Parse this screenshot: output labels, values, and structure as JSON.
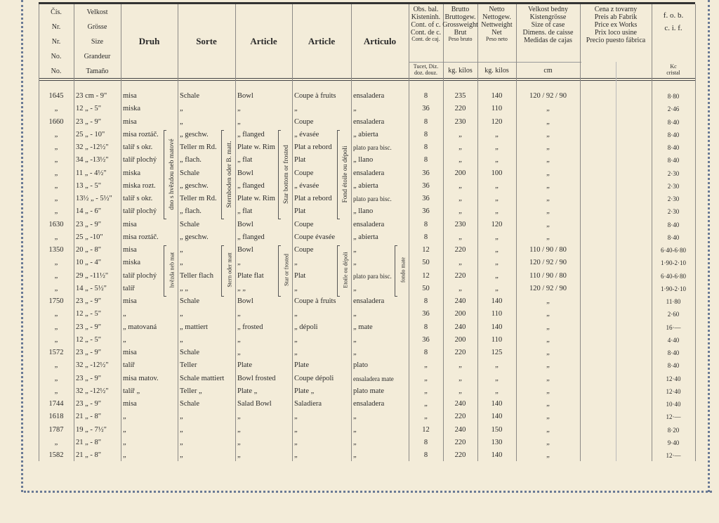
{
  "header": {
    "columns": [
      {
        "lines": [
          "Čís.",
          "Nr.",
          "Nr.",
          "No.",
          "No."
        ]
      },
      {
        "lines": [
          "Velkost",
          "Grösse",
          "Size",
          "Grandeur",
          "Tamaño"
        ]
      },
      {
        "lines": [
          "Druh"
        ]
      },
      {
        "lines": [
          "Sorte"
        ]
      },
      {
        "lines": [
          "Article"
        ]
      },
      {
        "lines": [
          "Article"
        ]
      },
      {
        "lines": [
          "Articulo"
        ]
      },
      {
        "lines": [
          "Obs. bal.",
          "Kisteninh.",
          "Cont. of c.",
          "Cont. de c.",
          "Cont. de caj."
        ],
        "units": [
          "Tucet, Diz.",
          "doz. douz."
        ]
      },
      {
        "lines": [
          "Brutto",
          "Bruttogew.",
          "Grossweight",
          "Brut",
          "Peso bruto"
        ],
        "units": [
          "kg. kilos"
        ]
      },
      {
        "lines": [
          "Netto",
          "Nettogew.",
          "Nettweight",
          "Net",
          "Peso neto"
        ],
        "units": [
          "kg. kilos"
        ]
      },
      {
        "lines": [
          "Velkost bedny",
          "Kistengrösse",
          "Size of case",
          "Dimens. de caisse",
          "Medidas de cajas"
        ],
        "units": [
          "cm"
        ]
      },
      {
        "lines": [
          "Cena z tovarny",
          "Preis ab Fabrik",
          "Price ex Works",
          "Prix loco usine",
          "Precio puesto fábrica"
        ]
      },
      {
        "lines": [
          "f. o. b.",
          "c. i. f."
        ],
        "units": [
          "Kc",
          "cristal"
        ]
      }
    ]
  },
  "rows": [
    [
      "1645",
      "23 cm - 9\"",
      "misa",
      "Schale",
      "Bowl",
      "Coupe à fruits",
      "ensaladera",
      "8",
      "235",
      "140",
      "120 / 92 / 90",
      "8·80"
    ],
    [
      "„",
      "12 „ - 5\"",
      "miska",
      "„",
      "„",
      "„",
      "„",
      "36",
      "220",
      "110",
      "„",
      "2·46"
    ],
    [
      "1660",
      "23 „ - 9\"",
      "misa",
      "„",
      "„",
      "Coupe",
      "ensaladera",
      "8",
      "230",
      "120",
      "„",
      "8·40"
    ],
    [
      "„",
      "25 „ - 10\"",
      "misa roztáč.",
      "„ geschw.",
      "„ flanged",
      "„ évasée",
      "„ abierta",
      "8",
      "„",
      "„",
      "„",
      "8·40"
    ],
    [
      "„",
      "32 „ -12½\"",
      "talíř s okr.",
      "Teller m Rd.",
      "Plate w. Rim",
      "Plat a rebord",
      "plato para bisc.",
      "8",
      "„",
      "„",
      "„",
      "8·40"
    ],
    [
      "„",
      "34 „ -13½\"",
      "talíř plochý",
      "„ flach.",
      "„ flat",
      "Plat",
      "„ llano",
      "8",
      "„",
      "„",
      "„",
      "8·40"
    ],
    [
      "„",
      "11 „ - 4½\"",
      "miska",
      "Schale",
      "Bowl",
      "Coupe",
      "ensaladera",
      "36",
      "200",
      "100",
      "„",
      "2·30"
    ],
    [
      "„",
      "13 „ - 5\"",
      "miska rozt.",
      "„ geschw.",
      "„ flanged",
      "„ évasée",
      "„ abierta",
      "36",
      "„",
      "„",
      "„",
      "2·30"
    ],
    [
      "„",
      "13½ „ - 5½\"",
      "talíř s okr.",
      "Teller m Rd.",
      "Plate w. Rim",
      "Plat a rebord",
      "plato para bisc.",
      "36",
      "„",
      "„",
      "„",
      "2·30"
    ],
    [
      "„",
      "14 „ - 6\"",
      "talíř plochý",
      "„ flach.",
      "„ flat",
      "Plat",
      "„ llano",
      "36",
      "„",
      "„",
      "„",
      "2·30"
    ],
    [
      "1630",
      "23 „ - 9\"",
      "misa",
      "Schale",
      "Bowl",
      "Coupe",
      "ensaladera",
      "8",
      "230",
      "120",
      "„",
      "8·40"
    ],
    [
      "„",
      "25 „ -10\"",
      "misa roztáč.",
      "„ geschw.",
      "„ flanged",
      "Coupe évasée",
      "„ abierta",
      "8",
      "„",
      "„",
      "„",
      "8·40"
    ],
    [
      "1350",
      "20 „ - 8\"",
      "misa",
      "„",
      "Bowl",
      "Coupe",
      "„",
      "12",
      "220",
      "„",
      "110 / 90 / 80",
      "6·40-6·80"
    ],
    [
      "„",
      "10 „ - 4\"",
      "miska",
      "„",
      "„",
      "„",
      "„",
      "50",
      "„",
      "„",
      "120 / 92 / 90",
      "1·90-2·10"
    ],
    [
      "„",
      "29 „ -11½\"",
      "talíř plochý",
      "Teller flach",
      "Plate flat",
      "Plat",
      "plato para bisc.",
      "12",
      "220",
      "„",
      "110 / 90 / 80",
      "6·40-6·80"
    ],
    [
      "„",
      "14 „ - 5½\"",
      "talíř",
      "„ „",
      "„ „",
      "„",
      "„",
      "50",
      "„",
      "„",
      "120 / 92 / 90",
      "1·90-2·10"
    ],
    [
      "1750",
      "23 „ - 9\"",
      "misa",
      "Schale",
      "Bowl",
      "Coupe à fruits",
      "ensaladera",
      "8",
      "240",
      "140",
      "„",
      "11·80"
    ],
    [
      "„",
      "12 „ - 5\"",
      "„",
      "„",
      "„",
      "„",
      "„",
      "36",
      "200",
      "110",
      "„",
      "2·60"
    ],
    [
      "„",
      "23 „ - 9\"",
      "„ matovaná",
      "„ mattiert",
      "„ frosted",
      "„ dépoli",
      "„ mate",
      "8",
      "240",
      "140",
      "„",
      "16·—"
    ],
    [
      "„",
      "12 „ - 5\"",
      "„",
      "„",
      "„",
      "„",
      "„",
      "36",
      "200",
      "110",
      "„",
      "4·40"
    ],
    [
      "1572",
      "23 „ - 9\"",
      "misa",
      "Schale",
      "„",
      "„",
      "„",
      "8",
      "220",
      "125",
      "„",
      "8·40"
    ],
    [
      "„",
      "32 „ -12½\"",
      "talíř",
      "Teller",
      "Plate",
      "Plate",
      "plato",
      "„",
      "„",
      "„",
      "„",
      "8·40"
    ],
    [
      "„",
      "23 „ - 9\"",
      "misa matov.",
      "Schale mattiert",
      "Bowl frosted",
      "Coupe dépoli",
      "ensaladera mate",
      "„",
      "„",
      "„",
      "„",
      "12·40"
    ],
    [
      "„",
      "32 „ -12½\"",
      "talíř „",
      "Teller „",
      "Plate „",
      "Plate „",
      "plato mate",
      "„",
      "„",
      "„",
      "„",
      "12·40"
    ],
    [
      "1744",
      "23 „ - 9\"",
      "misa",
      "Schale",
      "Salad Bowl",
      "Saladiera",
      "ensaladera",
      "„",
      "240",
      "140",
      "„",
      "10·40"
    ],
    [
      "1618",
      "21 „ - 8\"",
      "„",
      "„",
      "„",
      "„",
      "„",
      "„",
      "220",
      "140",
      "„",
      "12·—"
    ],
    [
      "1787",
      "19 „ - 7½\"",
      "„",
      "„",
      "„",
      "„",
      "„",
      "12",
      "240",
      "150",
      "„",
      "8·20"
    ],
    [
      "„",
      "21 „ - 8\"",
      "„",
      "„",
      "„",
      "„",
      "„",
      "8",
      "220",
      "130",
      "„",
      "9·40"
    ],
    [
      "1582",
      "21 „ - 8\"",
      "„",
      "„",
      "„",
      "„",
      "„",
      "8",
      "220",
      "140",
      "„",
      "12·—"
    ]
  ],
  "brackets": [
    {
      "lines": [
        "dno s hvězdou neb matové",
        "Sternboden oder B. matt.",
        "Star bottom or frosted",
        "Fond étoile ou dépoli"
      ]
    },
    {
      "lines": [
        "hvězda neb mat",
        "Stern oder matt",
        "Star or frosted",
        "Etoile ou dépoli",
        "fondo mate"
      ]
    }
  ]
}
